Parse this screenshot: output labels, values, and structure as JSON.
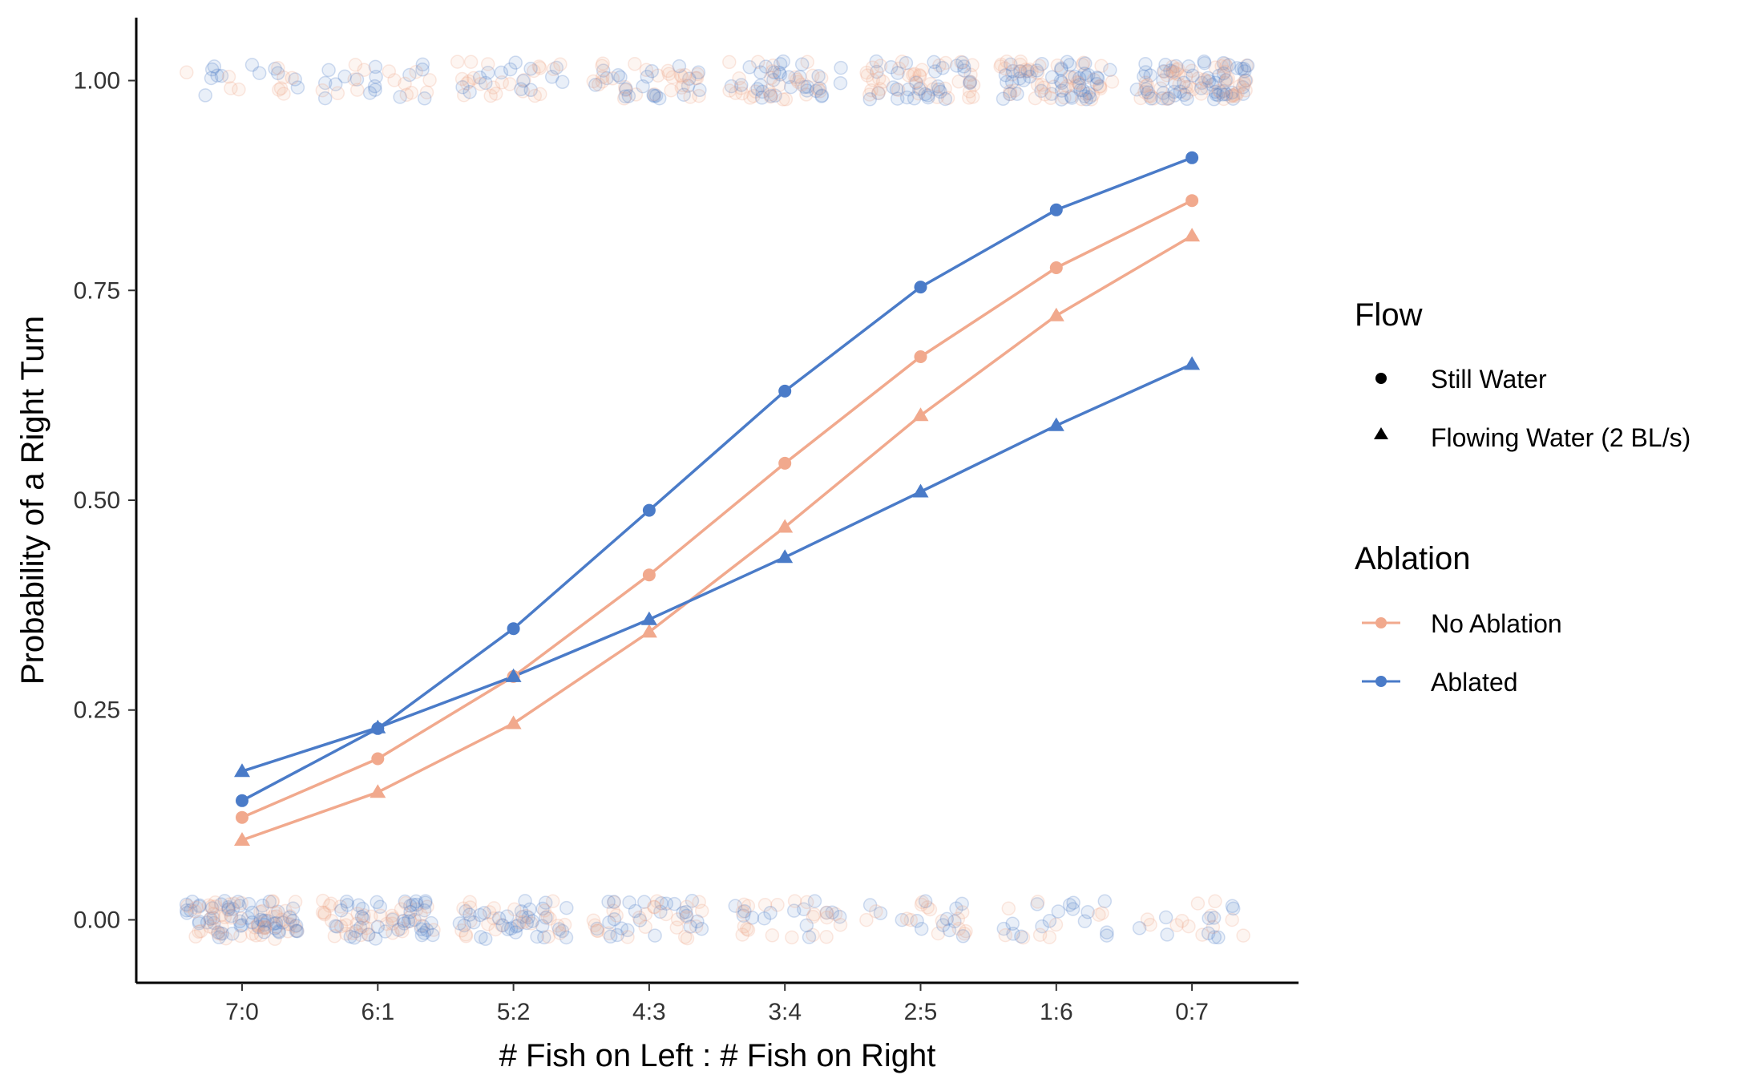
{
  "chart_data": {
    "type": "line",
    "title": "",
    "xlabel": "# Fish on Left : # Fish on Right",
    "ylabel": "Probability of a Right Turn",
    "categories": [
      "7:0",
      "6:1",
      "5:2",
      "4:3",
      "3:4",
      "2:5",
      "1:6",
      "0:7"
    ],
    "ylim": [
      -0.075,
      1.075
    ],
    "yticks": [
      0.0,
      0.25,
      0.5,
      0.75,
      1.0
    ],
    "ytick_labels": [
      "0.00",
      "0.25",
      "0.50",
      "0.75",
      "1.00"
    ],
    "grid": false,
    "legend_position": "right",
    "colors": {
      "no_ablation": "#F1A98D",
      "ablated": "#4A7BC8"
    },
    "raw_points": {
      "shown": true,
      "style": "jittered semi-transparent circles at 0 and 1",
      "opacity": 0.15
    },
    "series": [
      {
        "flow": "Still Water",
        "ablation": "No Ablation",
        "marker": "circle",
        "values": [
          0.122,
          0.192,
          0.29,
          0.411,
          0.544,
          0.671,
          0.777,
          0.857
        ]
      },
      {
        "flow": "Flowing Water (2 BL/s)",
        "ablation": "No Ablation",
        "marker": "triangle",
        "values": [
          0.095,
          0.152,
          0.234,
          0.343,
          0.468,
          0.601,
          0.72,
          0.815
        ]
      },
      {
        "flow": "Still Water",
        "ablation": "Ablated",
        "marker": "circle",
        "values": [
          0.142,
          0.228,
          0.347,
          0.488,
          0.63,
          0.754,
          0.846,
          0.908
        ]
      },
      {
        "flow": "Flowing Water (2 BL/s)",
        "ablation": "Ablated",
        "marker": "triangle",
        "values": [
          0.177,
          0.229,
          0.29,
          0.358,
          0.432,
          0.51,
          0.589,
          0.662
        ]
      }
    ]
  },
  "legend": {
    "flow": {
      "title": "Flow",
      "items": [
        {
          "label": "Still Water",
          "shape": "circle"
        },
        {
          "label": "Flowing Water (2 BL/s)",
          "shape": "triangle"
        }
      ]
    },
    "ablation": {
      "title": "Ablation",
      "items": [
        {
          "label": "No Ablation",
          "color": "#F1A98D"
        },
        {
          "label": "Ablated",
          "color": "#4A7BC8"
        }
      ]
    }
  }
}
